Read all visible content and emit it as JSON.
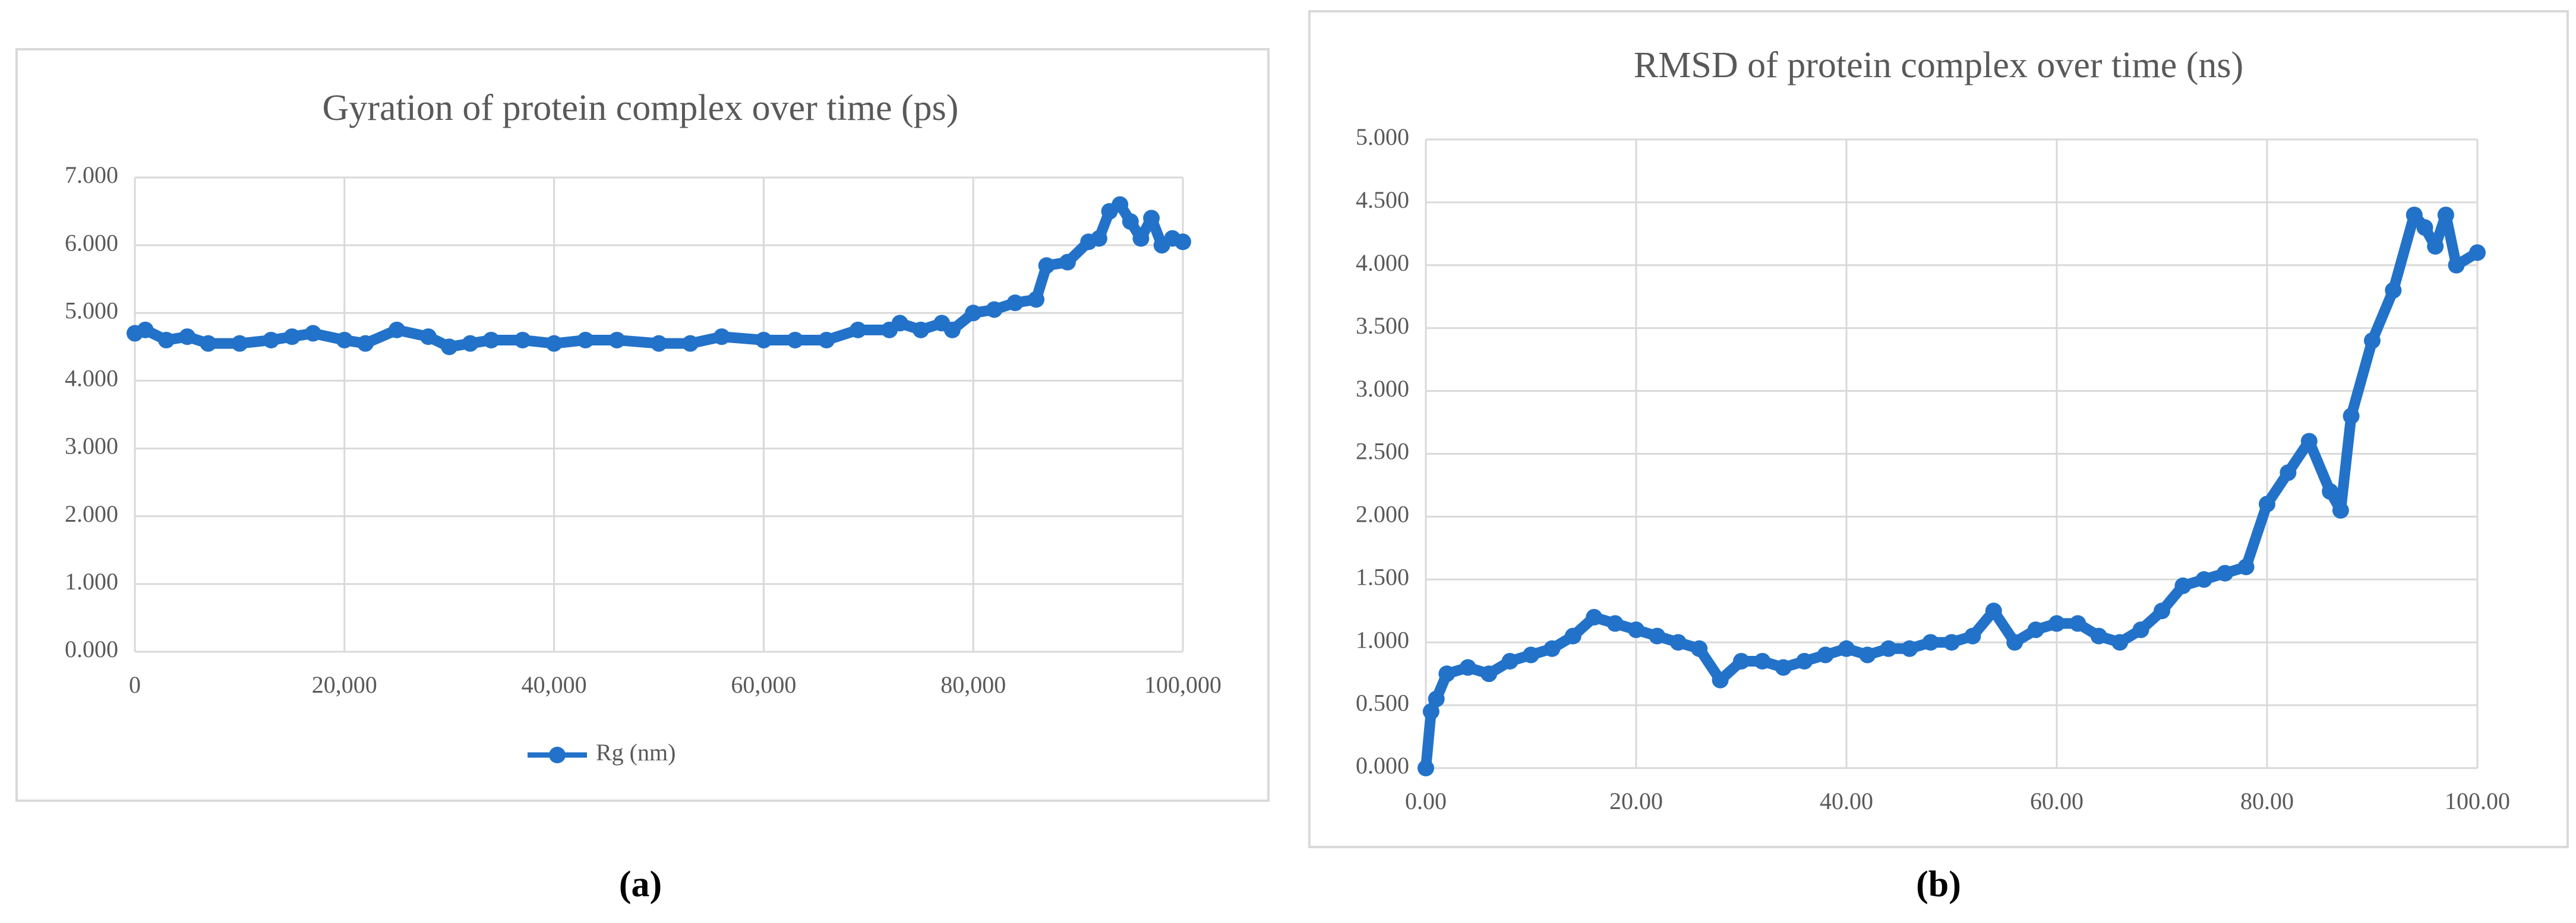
{
  "chart_data": [
    {
      "type": "line",
      "title": "Gyration of protein complex over time (ps)",
      "caption": "(a)",
      "x": [
        0,
        1000,
        3000,
        5000,
        7000,
        10000,
        13000,
        15000,
        17000,
        20000,
        22000,
        25000,
        28000,
        30000,
        32000,
        34000,
        37000,
        40000,
        43000,
        46000,
        50000,
        53000,
        56000,
        60000,
        63000,
        66000,
        69000,
        72000,
        73000,
        75000,
        77000,
        78000,
        80000,
        82000,
        84000,
        86000,
        87000,
        89000,
        91000,
        92000,
        93000,
        94000,
        95000,
        96000,
        97000,
        98000,
        99000,
        100000
      ],
      "series": [
        {
          "name": "Rg (nm)",
          "color": "#2272c9",
          "values": [
            4.7,
            4.75,
            4.6,
            4.65,
            4.55,
            4.55,
            4.6,
            4.65,
            4.7,
            4.6,
            4.55,
            4.75,
            4.65,
            4.5,
            4.55,
            4.6,
            4.6,
            4.55,
            4.6,
            4.6,
            4.55,
            4.55,
            4.65,
            4.6,
            4.6,
            4.6,
            4.75,
            4.75,
            4.85,
            4.75,
            4.85,
            4.75,
            5.0,
            5.05,
            5.15,
            5.2,
            5.7,
            5.75,
            6.05,
            6.1,
            6.5,
            6.6,
            6.35,
            6.1,
            6.4,
            6.0,
            6.1,
            6.05
          ]
        }
      ],
      "xlim": [
        0,
        100000
      ],
      "xticks": [
        0,
        {
          "value": 20000,
          "label": "20,000"
        },
        {
          "value": 40000,
          "label": "40,000"
        },
        {
          "value": 60000,
          "label": "60,000"
        },
        {
          "value": 80000,
          "label": "80,000"
        },
        {
          "value": 100000,
          "label": "100,000"
        }
      ],
      "ylim": [
        0,
        7
      ],
      "yticks": [
        {
          "value": 0,
          "label": "0.000"
        },
        {
          "value": 1,
          "label": "1.000"
        },
        {
          "value": 2,
          "label": "2.000"
        },
        {
          "value": 3,
          "label": "3.000"
        },
        {
          "value": 4,
          "label": "4.000"
        },
        {
          "value": 5,
          "label": "5.000"
        },
        {
          "value": 6,
          "label": "6.000"
        },
        {
          "value": 7,
          "label": "7.000"
        }
      ],
      "grid": true,
      "legend": "bottom"
    },
    {
      "type": "line",
      "title": "RMSD of protein complex over time (ns)",
      "caption": "(b)",
      "x": [
        0,
        0.5,
        1,
        2,
        4,
        6,
        8,
        10,
        12,
        14,
        16,
        18,
        20,
        22,
        24,
        26,
        28,
        30,
        32,
        34,
        36,
        38,
        40,
        42,
        44,
        46,
        48,
        50,
        52,
        54,
        56,
        58,
        60,
        62,
        64,
        66,
        68,
        70,
        72,
        74,
        76,
        78,
        80,
        82,
        84,
        86,
        87,
        88,
        90,
        92,
        94,
        95,
        96,
        97,
        98,
        100
      ],
      "series": [
        {
          "color": "#2272c9",
          "values": [
            0,
            0.45,
            0.55,
            0.75,
            0.8,
            0.75,
            0.85,
            0.9,
            0.95,
            1.05,
            1.2,
            1.15,
            1.1,
            1.05,
            1.0,
            0.95,
            0.7,
            0.85,
            0.85,
            0.8,
            0.85,
            0.9,
            0.95,
            0.9,
            0.95,
            0.95,
            1.0,
            1.0,
            1.05,
            1.25,
            1.0,
            1.1,
            1.15,
            1.15,
            1.05,
            1.0,
            1.1,
            1.25,
            1.45,
            1.5,
            1.55,
            1.6,
            2.1,
            2.35,
            2.6,
            2.2,
            2.05,
            2.8,
            3.4,
            3.8,
            4.4,
            4.3,
            4.15,
            4.4,
            4.0,
            4.1
          ]
        }
      ],
      "xlim": [
        0,
        100
      ],
      "xticks": [
        {
          "value": 0,
          "label": "0.00"
        },
        {
          "value": 20,
          "label": "20.00"
        },
        {
          "value": 40,
          "label": "40.00"
        },
        {
          "value": 60,
          "label": "60.00"
        },
        {
          "value": 80,
          "label": "80.00"
        },
        {
          "value": 100,
          "label": "100.00"
        }
      ],
      "ylim": [
        0,
        5
      ],
      "yticks": [
        {
          "value": 0,
          "label": "0.000"
        },
        {
          "value": 0.5,
          "label": "0.500"
        },
        {
          "value": 1,
          "label": "1.000"
        },
        {
          "value": 1.5,
          "label": "1.500"
        },
        {
          "value": 2,
          "label": "2.000"
        },
        {
          "value": 2.5,
          "label": "2.500"
        },
        {
          "value": 3,
          "label": "3.000"
        },
        {
          "value": 3.5,
          "label": "3.500"
        },
        {
          "value": 4,
          "label": "4.000"
        },
        {
          "value": 4.5,
          "label": "4.500"
        },
        {
          "value": 5,
          "label": "5.000"
        }
      ],
      "grid": true
    }
  ]
}
